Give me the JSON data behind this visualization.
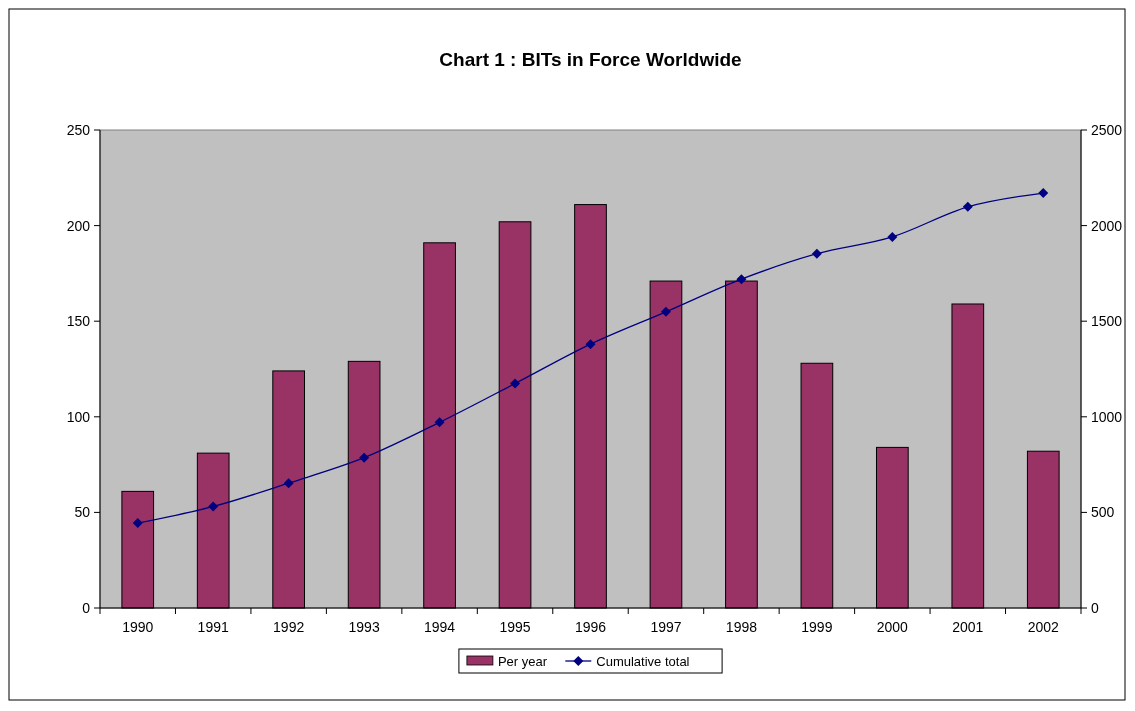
{
  "chart_data": {
    "type": "bar",
    "title": "Chart 1 : BITs in Force Worldwide",
    "categories": [
      "1990",
      "1991",
      "1992",
      "1993",
      "1994",
      "1995",
      "1996",
      "1997",
      "1998",
      "1999",
      "2000",
      "2001",
      "2002"
    ],
    "series": [
      {
        "name": "Per year",
        "color": "#993366",
        "values": [
          61,
          81,
          124,
          129,
          191,
          202,
          211,
          171,
          171,
          128,
          84,
          159,
          82
        ]
      },
      {
        "name": "Cumulative total",
        "type": "line",
        "axis": "y2",
        "color": "#000080",
        "marker": "diamond",
        "values": [
          444,
          531,
          653,
          786,
          971,
          1174,
          1380,
          1549,
          1720,
          1853,
          1941,
          2098,
          2170
        ]
      }
    ],
    "ylim": [
      0,
      250
    ],
    "yticks": [
      0,
      50,
      100,
      150,
      200,
      250
    ],
    "y2lim": [
      0,
      2500
    ],
    "y2ticks": [
      0,
      500,
      1000,
      1500,
      2000,
      2500
    ],
    "legend": "bottom",
    "grid": false
  }
}
